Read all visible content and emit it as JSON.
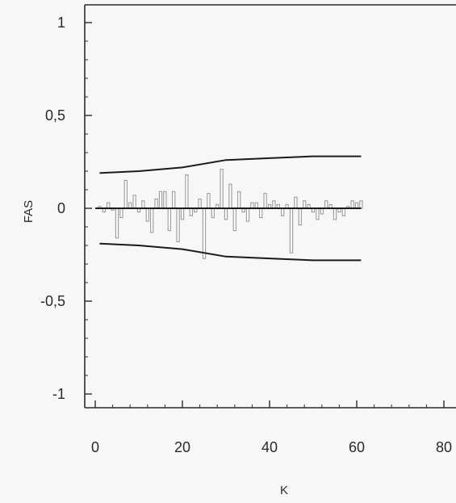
{
  "chart_data": {
    "type": "bar",
    "title": "",
    "xlabel": "K",
    "ylabel": "FAS",
    "xlim": [
      0,
      83
    ],
    "ylim": [
      -1.05,
      1.05
    ],
    "x_ticks": [
      0,
      20,
      40,
      60,
      80
    ],
    "y_ticks": [
      -1,
      -0.5,
      0,
      0.5,
      1
    ],
    "x_tick_labels": [
      "0",
      "20",
      "40",
      "60",
      "80"
    ],
    "y_tick_labels": [
      "-1",
      "-0,5",
      "0",
      "0,5",
      "1"
    ],
    "grid": false,
    "legend": "none",
    "bars": {
      "k": [
        1,
        2,
        3,
        4,
        5,
        6,
        7,
        8,
        9,
        10,
        11,
        12,
        13,
        14,
        15,
        16,
        17,
        18,
        19,
        20,
        21,
        22,
        23,
        24,
        25,
        26,
        27,
        28,
        29,
        30,
        31,
        32,
        33,
        34,
        35,
        36,
        37,
        38,
        39,
        40,
        41,
        42,
        43,
        44,
        45,
        46,
        47,
        48,
        49,
        50,
        51,
        52,
        53,
        54,
        55,
        56,
        57,
        58,
        59,
        60,
        61
      ],
      "values": [
        0.01,
        -0.02,
        0.03,
        -0.01,
        -0.16,
        -0.05,
        0.15,
        0.03,
        0.07,
        -0.02,
        0.04,
        -0.07,
        -0.13,
        0.05,
        0.09,
        0.09,
        -0.12,
        0.09,
        -0.18,
        -0.06,
        0.18,
        -0.04,
        -0.02,
        0.05,
        -0.27,
        0.08,
        -0.05,
        0.02,
        0.21,
        -0.06,
        0.13,
        -0.12,
        0.09,
        -0.02,
        -0.07,
        0.03,
        0.03,
        -0.05,
        0.08,
        0.02,
        0.04,
        0.02,
        -0.04,
        0.02,
        -0.24,
        0.06,
        -0.09,
        0.04,
        0.02,
        -0.02,
        -0.06,
        -0.03,
        0.04,
        0.02,
        -0.06,
        -0.02,
        -0.04,
        0.01,
        0.04,
        0.03,
        0.04
      ]
    },
    "confidence_bounds": {
      "k": [
        1,
        10,
        20,
        25,
        30,
        40,
        50,
        60,
        61
      ],
      "upper": [
        0.19,
        0.2,
        0.22,
        0.24,
        0.26,
        0.27,
        0.28,
        0.28,
        0.28
      ],
      "lower": [
        -0.19,
        -0.2,
        -0.22,
        -0.24,
        -0.26,
        -0.27,
        -0.28,
        -0.28,
        -0.28
      ]
    },
    "colors": {
      "bars": "#9a9a9a",
      "lines": "#1a1a1a",
      "frame": "#2a2a2a"
    }
  }
}
